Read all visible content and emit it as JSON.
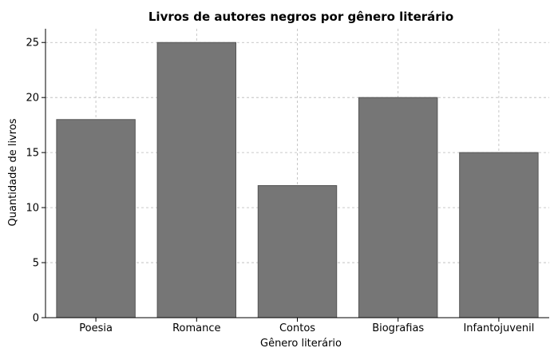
{
  "chart_data": {
    "type": "bar",
    "title": "Livros de autores negros por gênero literário",
    "xlabel": "Gênero literário",
    "ylabel": "Quantidade de livros",
    "categories": [
      "Poesia",
      "Romance",
      "Contos",
      "Biografias",
      "Infantojuvenil"
    ],
    "values": [
      18,
      25,
      12,
      20,
      15
    ],
    "ylim": [
      0,
      26.25
    ],
    "yticks": [
      0,
      5,
      10,
      15,
      20,
      25
    ],
    "grid": true,
    "bar_color": "#767676"
  }
}
